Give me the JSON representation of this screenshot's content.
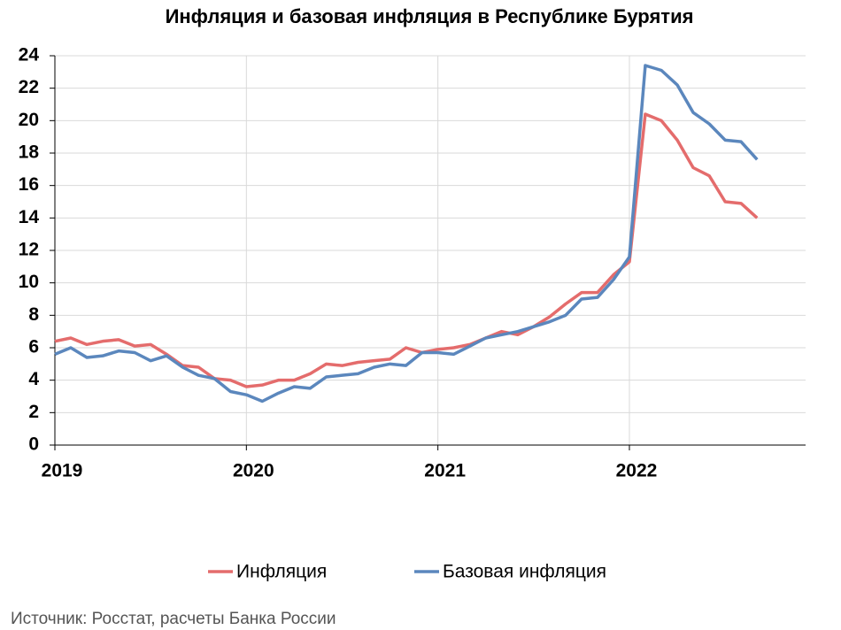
{
  "chart_data": {
    "type": "line",
    "title": "Инфляция и базовая инфляция в Республике Бурятия",
    "source": "Источник: Росстат, расчеты Банка России",
    "x": [
      2019,
      2019.083,
      2019.167,
      2019.25,
      2019.333,
      2019.417,
      2019.5,
      2019.583,
      2019.667,
      2019.75,
      2019.833,
      2019.917,
      2020,
      2020.083,
      2020.167,
      2020.25,
      2020.333,
      2020.417,
      2020.5,
      2020.583,
      2020.667,
      2020.75,
      2020.833,
      2020.917,
      2021,
      2021.083,
      2021.167,
      2021.25,
      2021.333,
      2021.417,
      2021.5,
      2021.583,
      2021.667,
      2021.75,
      2021.833,
      2021.917,
      2022,
      2022.083,
      2022.167,
      2022.25,
      2022.333,
      2022.417,
      2022.5,
      2022.583,
      2022.667
    ],
    "series": [
      {
        "name": "Инфляция",
        "color": "#e46c6c",
        "values": [
          6.4,
          6.6,
          6.2,
          6.4,
          6.5,
          6.1,
          6.2,
          5.6,
          4.9,
          4.8,
          4.1,
          4.0,
          3.6,
          3.7,
          4.0,
          4.0,
          4.4,
          5.0,
          4.9,
          5.1,
          5.2,
          5.3,
          6.0,
          5.7,
          5.9,
          6.0,
          6.2,
          6.6,
          7.0,
          6.8,
          7.3,
          7.9,
          8.7,
          9.4,
          9.4,
          10.5,
          11.3,
          20.4,
          20.0,
          18.8,
          17.1,
          16.6,
          15.0,
          14.9,
          14.0
        ]
      },
      {
        "name": "Базовая инфляция",
        "color": "#5b87bd",
        "values": [
          5.6,
          6.0,
          5.4,
          5.5,
          5.8,
          5.7,
          5.2,
          5.5,
          4.8,
          4.3,
          4.1,
          3.3,
          3.1,
          2.7,
          3.2,
          3.6,
          3.5,
          4.2,
          4.3,
          4.4,
          4.8,
          5.0,
          4.9,
          5.7,
          5.7,
          5.6,
          6.1,
          6.6,
          6.8,
          7.0,
          7.3,
          7.6,
          8.0,
          9.0,
          9.1,
          10.2,
          11.6,
          23.4,
          23.1,
          22.2,
          20.5,
          19.8,
          18.8,
          18.7,
          17.6
        ]
      }
    ],
    "xlim": [
      2019,
      2022.92
    ],
    "xticks": [
      2019,
      2020,
      2021,
      2022
    ],
    "ylim": [
      0,
      24
    ],
    "yticks": [
      0,
      2,
      4,
      6,
      8,
      10,
      12,
      14,
      16,
      18,
      20,
      22,
      24
    ],
    "grid": true,
    "legend": "bottom"
  }
}
